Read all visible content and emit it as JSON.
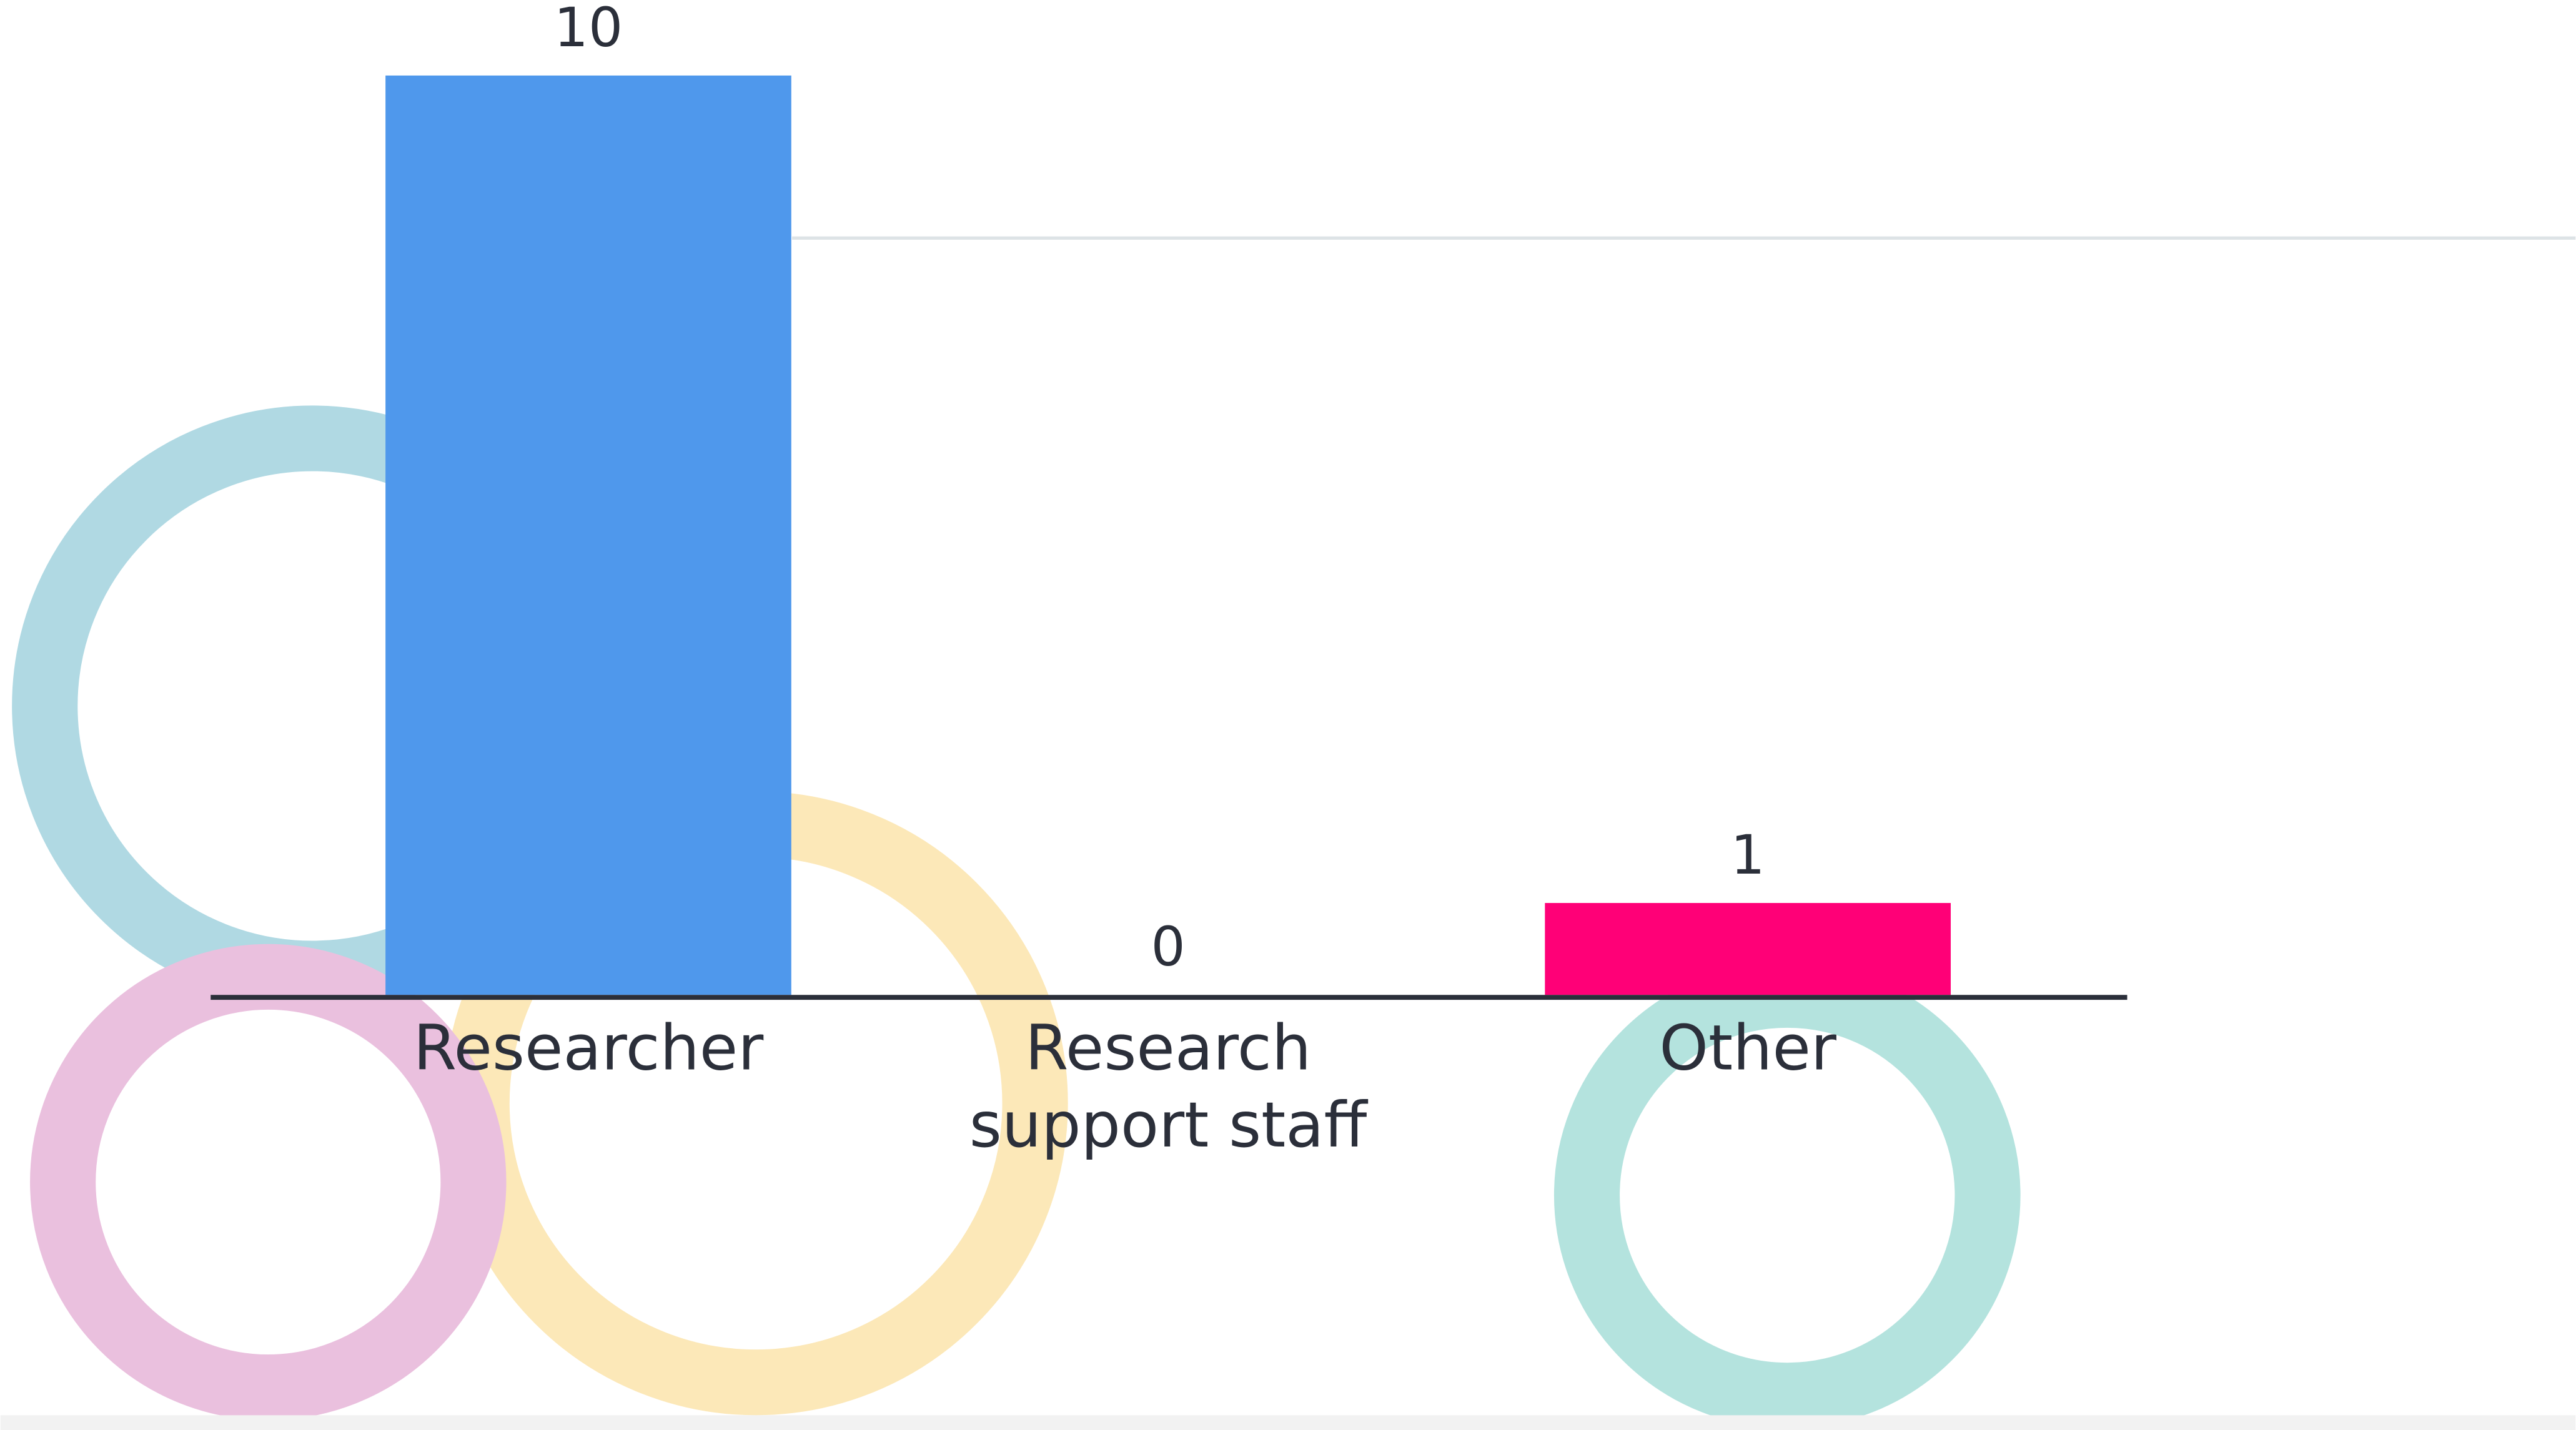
{
  "chart_data": {
    "type": "bar",
    "categories": [
      "Researcher",
      "Research support staff",
      "Other"
    ],
    "values": [
      10,
      0,
      1
    ],
    "colors": [
      "#4f98ec",
      null,
      "#ff0077"
    ],
    "ylim": [
      0,
      10
    ]
  }
}
